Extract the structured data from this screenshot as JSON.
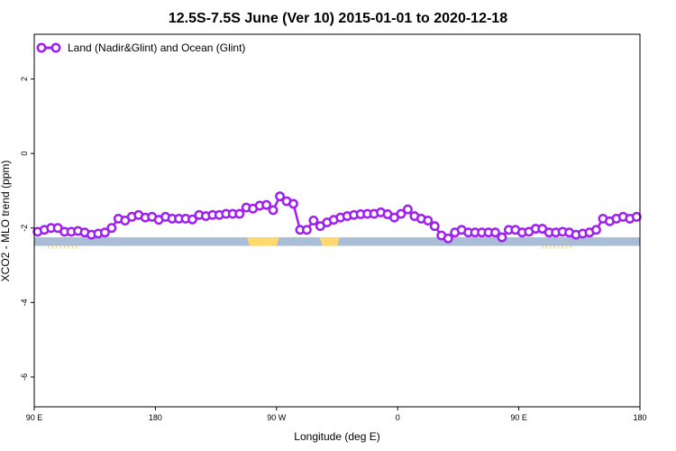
{
  "chart_data": {
    "type": "line",
    "title": "12.5S-7.5S June (Ver 10)   2015-01-01 to 2020-12-18",
    "xlabel": "Longitude (deg E)",
    "ylabel": "XCO2 - MLO trend (ppm)",
    "x_ticks": [
      {
        "value": 90,
        "label": "90 E"
      },
      {
        "value": 180,
        "label": "180"
      },
      {
        "value": 270,
        "label": "90 W"
      },
      {
        "value": 360,
        "label": "0"
      },
      {
        "value": 450,
        "label": "90 E"
      },
      {
        "value": 540,
        "label": "180"
      }
    ],
    "y_ticks": [
      {
        "value": 2,
        "label": "2"
      },
      {
        "value": 0,
        "label": "0"
      },
      {
        "value": -2,
        "label": "-2"
      },
      {
        "value": -4,
        "label": "-4"
      },
      {
        "value": -6,
        "label": "-6"
      }
    ],
    "xlim": [
      90,
      540
    ],
    "ylim": [
      -6.8,
      3.2
    ],
    "legend_position": "top-left",
    "series": [
      {
        "name": "Land (Nadir&Glint) and Ocean (Glint)",
        "color": "#a020f0",
        "x": [
          92.5,
          97.5,
          102.5,
          107.5,
          112.5,
          117.5,
          122.5,
          127.5,
          132.5,
          137.5,
          142.5,
          147.5,
          152.5,
          157.5,
          162.5,
          167.5,
          172.5,
          177.5,
          182.5,
          187.5,
          192.5,
          197.5,
          202.5,
          207.5,
          212.5,
          217.5,
          222.5,
          227.5,
          232.5,
          237.5,
          242.5,
          247.5,
          252.5,
          257.5,
          262.5,
          267.5,
          272.5,
          277.5,
          282.5,
          287.5,
          292.5,
          297.5,
          302.5,
          307.5,
          312.5,
          317.5,
          322.5,
          327.5,
          332.5,
          337.5,
          342.5,
          347.5,
          352.5,
          357.5,
          362.5,
          367.5,
          372.5,
          377.5,
          382.5,
          387.5,
          392.5,
          397.5,
          402.5,
          407.5,
          412.5,
          417.5,
          422.5,
          427.5,
          432.5,
          437.5,
          442.5,
          447.5,
          452.5,
          457.5,
          462.5,
          467.5,
          472.5,
          477.5,
          482.5,
          487.5,
          492.5,
          497.5,
          502.5,
          507.5,
          512.5,
          517.5,
          522.5,
          527.5,
          532.5,
          537.5
        ],
        "y": [
          -2.1,
          -2.05,
          -2.0,
          -2.0,
          -2.1,
          -2.1,
          -2.08,
          -2.12,
          -2.18,
          -2.15,
          -2.12,
          -2.0,
          -1.75,
          -1.8,
          -1.7,
          -1.65,
          -1.72,
          -1.7,
          -1.78,
          -1.7,
          -1.75,
          -1.75,
          -1.75,
          -1.77,
          -1.65,
          -1.68,
          -1.65,
          -1.65,
          -1.62,
          -1.62,
          -1.62,
          -1.45,
          -1.48,
          -1.4,
          -1.38,
          -1.52,
          -1.15,
          -1.28,
          -1.35,
          -2.05,
          -2.05,
          -1.8,
          -1.95,
          -1.85,
          -1.78,
          -1.72,
          -1.68,
          -1.65,
          -1.63,
          -1.62,
          -1.62,
          -1.58,
          -1.63,
          -1.72,
          -1.62,
          -1.5,
          -1.68,
          -1.75,
          -1.8,
          -1.95,
          -2.2,
          -2.28,
          -2.12,
          -2.05,
          -2.12,
          -2.12,
          -2.12,
          -2.12,
          -2.12,
          -2.25,
          -2.05,
          -2.05,
          -2.12,
          -2.1,
          -2.02,
          -2.02,
          -2.12,
          -2.12,
          -2.1,
          -2.12,
          -2.18,
          -2.15,
          -2.12,
          -2.05,
          -1.75,
          -1.82,
          -1.75,
          -1.7,
          -1.75,
          -1.7
        ]
      }
    ],
    "landmask": {
      "band_y": [
        -2.25,
        -2.48
      ],
      "ocean_color": "#a9bdd6",
      "land_color": "#ffd86e",
      "land_segments": [
        [
          248,
          272
        ],
        [
          302,
          317
        ]
      ],
      "land_ticks": [
        [
          100,
          121
        ],
        [
          467,
          488
        ]
      ]
    }
  }
}
